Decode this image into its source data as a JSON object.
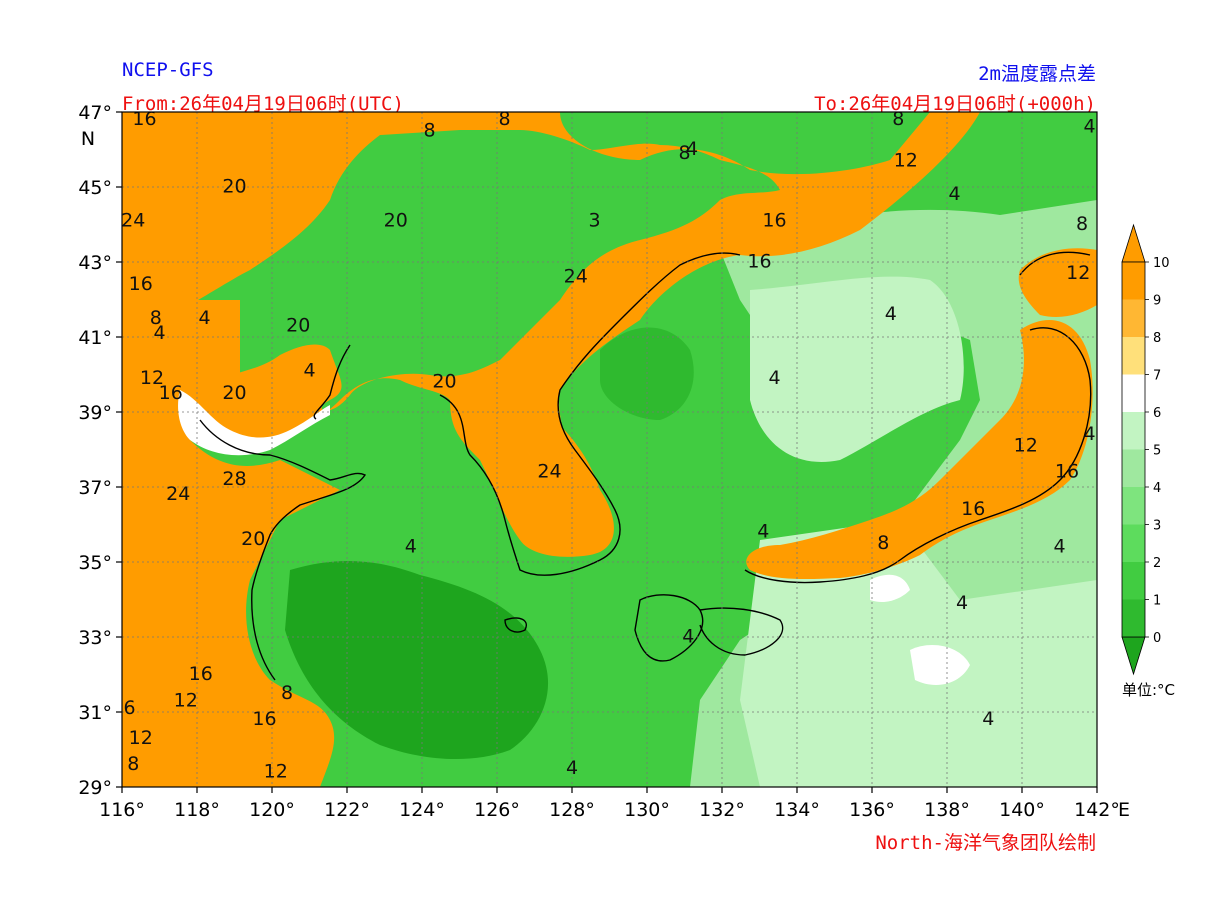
{
  "header": {
    "model": "NCEP-GFS",
    "product": "2m温度露点差",
    "from": "From:26年04月19日06时(UTC)",
    "to": "To:26年04月19日06时(+000h)"
  },
  "footer": {
    "credit": "North-海洋气象团队绘制"
  },
  "colorbar": {
    "unit": "单位:°C",
    "levels": [
      "0",
      "1",
      "2",
      "3",
      "4",
      "5",
      "6",
      "7",
      "8",
      "9",
      "10"
    ],
    "colors": [
      "#1ea51e",
      "#2fba2f",
      "#41cc41",
      "#5ddc5d",
      "#7ee47e",
      "#9fe89f",
      "#c2f4c2",
      "#ffffff",
      "#ffe07a",
      "#ffb733",
      "#ff9c00"
    ]
  },
  "axes": {
    "lon_labels": [
      "116°",
      "118°",
      "120°",
      "122°",
      "124°",
      "126°",
      "128°",
      "130°",
      "132°",
      "134°",
      "136°",
      "138°",
      "140°",
      "142°"
    ],
    "lon_suffix": "E",
    "lat_labels": [
      "47°",
      "45°",
      "43°",
      "41°",
      "39°",
      "37°",
      "35°",
      "33°",
      "31°",
      "29°"
    ],
    "lat_suffix": "N",
    "lon_range": [
      116,
      142
    ],
    "lat_range": [
      29,
      47
    ]
  },
  "contour_labels": [
    {
      "text": "16",
      "lon": 116.6,
      "lat": 46.8
    },
    {
      "text": "8",
      "lon": 124.2,
      "lat": 46.5
    },
    {
      "text": "8",
      "lon": 126.2,
      "lat": 46.8
    },
    {
      "text": "8",
      "lon": 131.0,
      "lat": 45.9
    },
    {
      "text": "4",
      "lon": 131.2,
      "lat": 46.0
    },
    {
      "text": "8",
      "lon": 136.7,
      "lat": 46.8
    },
    {
      "text": "12",
      "lon": 136.9,
      "lat": 45.7
    },
    {
      "text": "4",
      "lon": 141.8,
      "lat": 46.6
    },
    {
      "text": "20",
      "lon": 119.0,
      "lat": 45.0
    },
    {
      "text": "24",
      "lon": 116.3,
      "lat": 44.1
    },
    {
      "text": "20",
      "lon": 123.3,
      "lat": 44.1
    },
    {
      "text": "3",
      "lon": 128.6,
      "lat": 44.1
    },
    {
      "text": "16",
      "lon": 133.4,
      "lat": 44.1
    },
    {
      "text": "16",
      "lon": 133.0,
      "lat": 43.0
    },
    {
      "text": "4",
      "lon": 138.2,
      "lat": 44.8
    },
    {
      "text": "8",
      "lon": 141.6,
      "lat": 44.0
    },
    {
      "text": "24",
      "lon": 128.1,
      "lat": 42.6
    },
    {
      "text": "12",
      "lon": 141.5,
      "lat": 42.7
    },
    {
      "text": "16",
      "lon": 116.5,
      "lat": 42.4
    },
    {
      "text": "8",
      "lon": 116.9,
      "lat": 41.5
    },
    {
      "text": "4",
      "lon": 117.0,
      "lat": 41.1
    },
    {
      "text": "4",
      "lon": 118.2,
      "lat": 41.5
    },
    {
      "text": "20",
      "lon": 120.7,
      "lat": 41.3
    },
    {
      "text": "4",
      "lon": 121.0,
      "lat": 40.1
    },
    {
      "text": "4",
      "lon": 136.5,
      "lat": 41.6
    },
    {
      "text": "12",
      "lon": 116.8,
      "lat": 39.9
    },
    {
      "text": "16",
      "lon": 117.3,
      "lat": 39.5
    },
    {
      "text": "20",
      "lon": 119.0,
      "lat": 39.5
    },
    {
      "text": "20",
      "lon": 124.6,
      "lat": 39.8
    },
    {
      "text": "4",
      "lon": 133.4,
      "lat": 39.9
    },
    {
      "text": "12",
      "lon": 140.1,
      "lat": 38.1
    },
    {
      "text": "4",
      "lon": 141.8,
      "lat": 38.4
    },
    {
      "text": "28",
      "lon": 119.0,
      "lat": 37.2
    },
    {
      "text": "24",
      "lon": 117.5,
      "lat": 36.8
    },
    {
      "text": "24",
      "lon": 127.4,
      "lat": 37.4
    },
    {
      "text": "16",
      "lon": 141.2,
      "lat": 37.4
    },
    {
      "text": "16",
      "lon": 138.7,
      "lat": 36.4
    },
    {
      "text": "20",
      "lon": 119.5,
      "lat": 35.6
    },
    {
      "text": "4",
      "lon": 123.7,
      "lat": 35.4
    },
    {
      "text": "4",
      "lon": 133.1,
      "lat": 35.8
    },
    {
      "text": "8",
      "lon": 136.3,
      "lat": 35.5
    },
    {
      "text": "4",
      "lon": 141.0,
      "lat": 35.4
    },
    {
      "text": "4",
      "lon": 138.4,
      "lat": 33.9
    },
    {
      "text": "4",
      "lon": 131.1,
      "lat": 33.0
    },
    {
      "text": "16",
      "lon": 118.1,
      "lat": 32.0
    },
    {
      "text": "12",
      "lon": 117.7,
      "lat": 31.3
    },
    {
      "text": "8",
      "lon": 120.4,
      "lat": 31.5
    },
    {
      "text": "16",
      "lon": 119.8,
      "lat": 30.8
    },
    {
      "text": "6",
      "lon": 116.2,
      "lat": 31.1
    },
    {
      "text": "12",
      "lon": 116.5,
      "lat": 30.3
    },
    {
      "text": "8",
      "lon": 116.3,
      "lat": 29.6
    },
    {
      "text": "12",
      "lon": 120.1,
      "lat": 29.4
    },
    {
      "text": "4",
      "lon": 128.0,
      "lat": 29.5
    },
    {
      "text": "4",
      "lon": 139.1,
      "lat": 30.8
    }
  ]
}
